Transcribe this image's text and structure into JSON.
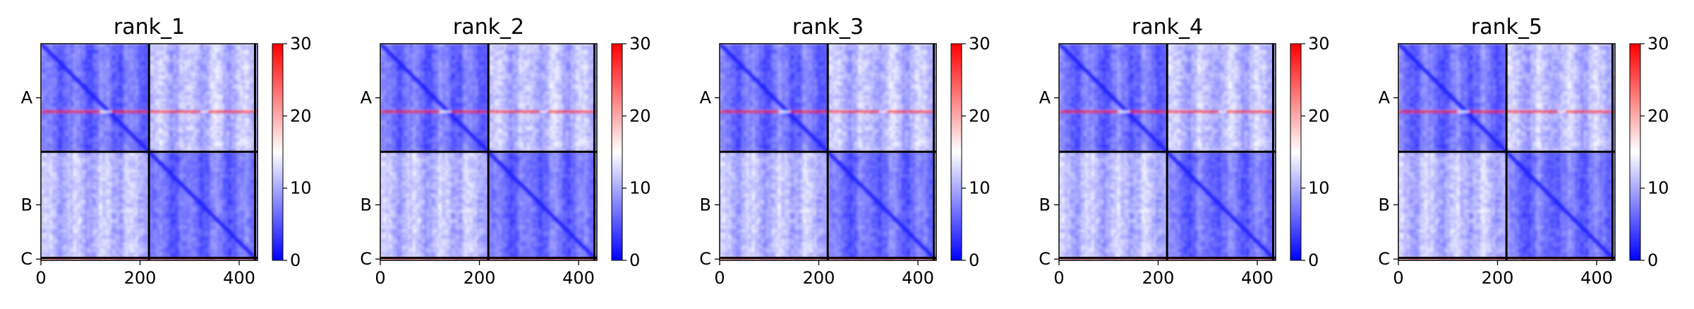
{
  "chart_data": {
    "type": "heatmap",
    "colormap": {
      "name": "bwr",
      "low": "#0000ff",
      "mid": "#ffffff",
      "high": "#ff0000"
    },
    "x": {
      "ticks": [
        0,
        200,
        400
      ],
      "range": [
        0,
        437
      ]
    },
    "colorbar": {
      "range": [
        0,
        30
      ],
      "ticks": [
        0,
        10,
        20,
        30
      ]
    },
    "chains": [
      {
        "label": "A",
        "start": 0,
        "end": 218
      },
      {
        "label": "B",
        "start": 218,
        "end": 432
      },
      {
        "label": "C",
        "start": 432,
        "end": 437
      }
    ],
    "grid_lines": [
      218,
      432
    ],
    "panels": [
      {
        "title": "rank_1",
        "high_band_row": 136
      },
      {
        "title": "rank_2",
        "high_band_row": 136
      },
      {
        "title": "rank_3",
        "high_band_row": 136
      },
      {
        "title": "rank_4",
        "high_band_row": 136
      },
      {
        "title": "rank_5",
        "high_band_row": 136
      }
    ]
  }
}
